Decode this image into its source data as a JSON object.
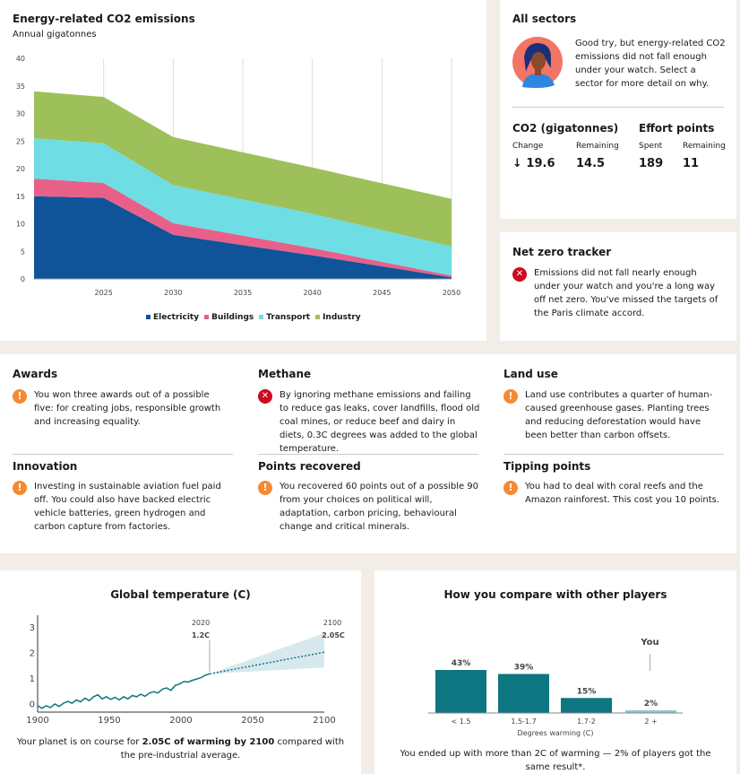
{
  "emissions": {
    "title": "Energy-related CO2 emissions",
    "subtitle": "Annual gigatonnes",
    "legend": [
      {
        "name": "Electricity",
        "color": "#0f5499"
      },
      {
        "name": "Buildings",
        "color": "#e8608a"
      },
      {
        "name": "Transport",
        "color": "#6fdde4"
      },
      {
        "name": "Industry",
        "color": "#9dc05a"
      }
    ]
  },
  "sectors": {
    "title": "All sectors",
    "message": "Good try, but energy-related CO2 emissions did not fall enough under your watch. Select a sector for more detail on why.",
    "co2_heading": "CO2 (gigatonnes)",
    "effort_heading": "Effort points",
    "change_label": "Change",
    "change_value": "↓ 19.6",
    "remaining_label": "Remaining",
    "remaining_value": "14.5",
    "spent_label": "Spent",
    "spent_value": "189",
    "effort_remaining_label": "Remaining",
    "effort_remaining_value": "11"
  },
  "netzero": {
    "title": "Net zero tracker",
    "text": "Emissions did not fall nearly enough under your watch and you're a long way off net zero. You've missed the targets of the Paris climate accord."
  },
  "results": [
    {
      "title": "Awards",
      "icon": "warning-icon",
      "text": "You won three awards out of a possible five: for creating jobs, responsible growth and increasing equality."
    },
    {
      "title": "Methane",
      "icon": "cross-icon",
      "text": "By ignoring methane emissions and failing to reduce gas leaks, cover landfills, flood old coal mines, or reduce beef and dairy in diets, 0.3C degrees was added to the global temperature."
    },
    {
      "title": "Land use",
      "icon": "warning-icon",
      "text": "Land use contributes a quarter of human-caused greenhouse gases. Planting trees and reducing deforestation would have been better than carbon offsets."
    },
    {
      "title": "Innovation",
      "icon": "warning-icon",
      "text": "Investing in sustainable aviation fuel paid off. You could also have backed electric vehicle batteries, green hydrogen and carbon capture from factories."
    },
    {
      "title": "Points recovered",
      "icon": "warning-icon",
      "text": "You recovered 60 points out of a possible 90 from your choices on political will, adaptation, carbon pricing, behavioural change and critical minerals."
    },
    {
      "title": "Tipping points",
      "icon": "warning-icon",
      "text": "You had to deal with coral reefs and the Amazon rainforest. This cost you 10 points."
    }
  ],
  "temperature": {
    "title": "Global temperature (C)",
    "caption_pre": "Your planet is on course for ",
    "caption_bold": "2.05C of warming by 2100",
    "caption_post": " compared with the pre-industrial average.",
    "ann_2020_year": "2020",
    "ann_2020_value": "1.2C",
    "ann_2100_year": "2100",
    "ann_2100_value": "2.05C"
  },
  "compare": {
    "title": "How you compare with other players",
    "you_label": "You",
    "xlabel": "Degrees warming (C)",
    "caption": "You ended up with more than 2C of warming — 2% of players got the same result*."
  },
  "chart_data": [
    {
      "type": "area",
      "title": "Energy-related CO2 emissions",
      "subtitle": "Annual gigatonnes",
      "x": [
        2020,
        2025,
        2030,
        2040,
        2050
      ],
      "series": [
        {
          "name": "Electricity",
          "values": [
            15,
            14.7,
            8,
            4.3,
            0.3
          ]
        },
        {
          "name": "Buildings",
          "values": [
            3.2,
            2.7,
            2.1,
            1.3,
            0.3
          ]
        },
        {
          "name": "Transport",
          "values": [
            7.3,
            7.2,
            6.9,
            6.2,
            5.3
          ]
        },
        {
          "name": "Industry",
          "values": [
            8.5,
            8.4,
            8.7,
            8.4,
            8.6
          ]
        }
      ],
      "x_ticks": [
        2025,
        2030,
        2035,
        2040,
        2045,
        2050
      ],
      "y_ticks": [
        0,
        5,
        10,
        15,
        20,
        25,
        30,
        35,
        40
      ],
      "ylim": [
        0,
        40
      ],
      "xlim": [
        2020,
        2050
      ],
      "stacked": true,
      "legend_position": "bottom"
    },
    {
      "type": "line",
      "title": "Global temperature (C)",
      "x_ticks": [
        1900,
        1950,
        2000,
        2050,
        2100
      ],
      "y_ticks": [
        0,
        1,
        2,
        3
      ],
      "xlim": [
        1900,
        2100
      ],
      "ylim": [
        -0.3,
        3.5
      ],
      "historic": [
        [
          1900,
          -0.05
        ],
        [
          1903,
          -0.15
        ],
        [
          1906,
          -0.05
        ],
        [
          1909,
          -0.12
        ],
        [
          1912,
          0.02
        ],
        [
          1915,
          -0.08
        ],
        [
          1918,
          0.05
        ],
        [
          1921,
          0.12
        ],
        [
          1924,
          0.05
        ],
        [
          1927,
          0.18
        ],
        [
          1930,
          0.1
        ],
        [
          1933,
          0.25
        ],
        [
          1936,
          0.15
        ],
        [
          1939,
          0.3
        ],
        [
          1942,
          0.38
        ],
        [
          1945,
          0.22
        ],
        [
          1948,
          0.3
        ],
        [
          1951,
          0.2
        ],
        [
          1954,
          0.28
        ],
        [
          1957,
          0.18
        ],
        [
          1960,
          0.3
        ],
        [
          1963,
          0.22
        ],
        [
          1966,
          0.35
        ],
        [
          1969,
          0.3
        ],
        [
          1972,
          0.4
        ],
        [
          1975,
          0.32
        ],
        [
          1978,
          0.45
        ],
        [
          1981,
          0.5
        ],
        [
          1984,
          0.45
        ],
        [
          1987,
          0.6
        ],
        [
          1990,
          0.65
        ],
        [
          1993,
          0.55
        ],
        [
          1996,
          0.75
        ],
        [
          1999,
          0.8
        ],
        [
          2002,
          0.9
        ],
        [
          2005,
          0.88
        ],
        [
          2008,
          0.95
        ],
        [
          2011,
          1.0
        ],
        [
          2014,
          1.05
        ],
        [
          2017,
          1.15
        ],
        [
          2020,
          1.2
        ]
      ],
      "projection": [
        [
          2020,
          1.2
        ],
        [
          2100,
          2.05
        ]
      ],
      "projection_band": {
        "upper": [
          [
            2020,
            1.2
          ],
          [
            2100,
            2.8
          ]
        ],
        "lower": [
          [
            2020,
            1.2
          ],
          [
            2100,
            1.45
          ]
        ]
      }
    },
    {
      "type": "bar",
      "title": "How you compare with other players",
      "categories": [
        "< 1.5",
        "1.5-1.7",
        "1.7-2",
        "2 +"
      ],
      "values": [
        43,
        39,
        15,
        2
      ],
      "data_labels": [
        "43%",
        "39%",
        "15%",
        "2%"
      ],
      "xlabel": "Degrees warming (C)",
      "highlight": "2 +"
    }
  ]
}
